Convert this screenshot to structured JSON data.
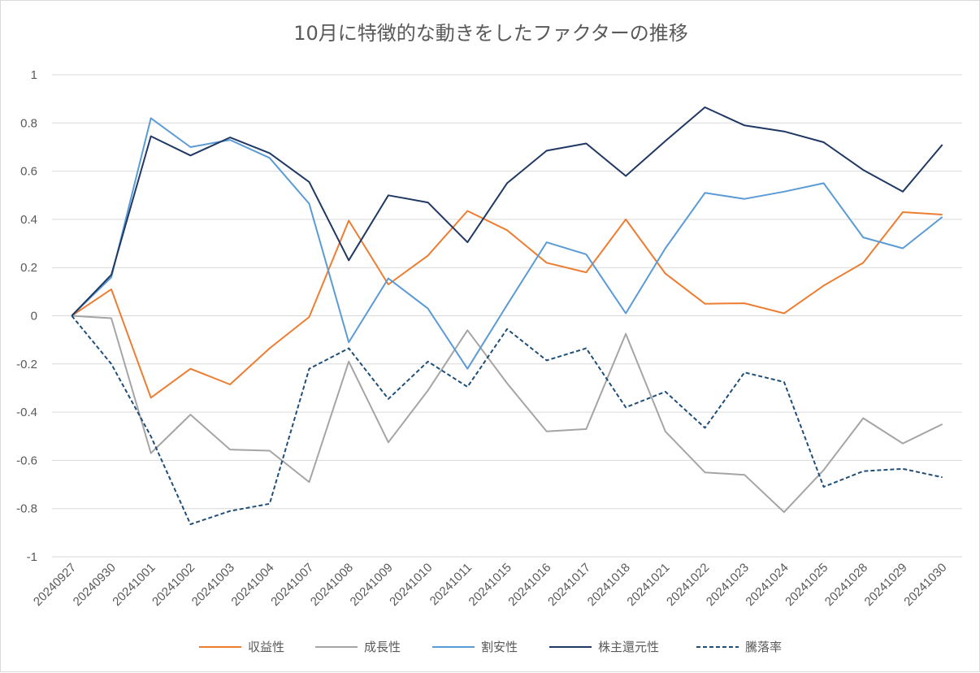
{
  "chart_data": {
    "type": "line",
    "title": "10月に特徴的な動きをしたファクターの推移",
    "xlabel": "",
    "ylabel": "",
    "ylim": [
      -1,
      1
    ],
    "yticks": [
      "1",
      "0.8",
      "0.6",
      "0.4",
      "0.2",
      "0",
      "-0.2",
      "-0.4",
      "-0.6",
      "-0.8",
      "-1"
    ],
    "grid": true,
    "legend_position": "bottom",
    "categories": [
      "20240927",
      "20240930",
      "20241001",
      "20241002",
      "20241003",
      "20241004",
      "20241007",
      "20241008",
      "20241009",
      "20241010",
      "20241011",
      "20241015",
      "20241016",
      "20241017",
      "20241018",
      "20241021",
      "20241022",
      "20241023",
      "20241024",
      "20241025",
      "20241028",
      "20241029",
      "20241030"
    ],
    "series": [
      {
        "name": "収益性",
        "color": "#ED7D31",
        "dash": "solid",
        "values": [
          0,
          0.11,
          -0.34,
          -0.22,
          -0.285,
          -0.135,
          -0.005,
          0.395,
          0.13,
          0.25,
          0.435,
          0.355,
          0.22,
          0.18,
          0.4,
          0.175,
          0.05,
          0.052,
          0.01,
          0.125,
          0.22,
          0.43,
          0.42
        ]
      },
      {
        "name": "成長性",
        "color": "#A5A5A5",
        "dash": "solid",
        "values": [
          0,
          -0.01,
          -0.57,
          -0.41,
          -0.555,
          -0.56,
          -0.69,
          -0.19,
          -0.525,
          -0.31,
          -0.06,
          -0.28,
          -0.48,
          -0.47,
          -0.075,
          -0.48,
          -0.65,
          -0.66,
          -0.815,
          -0.64,
          -0.425,
          -0.53,
          -0.45
        ]
      },
      {
        "name": "割安性",
        "color": "#5B9BD5",
        "dash": "solid",
        "values": [
          0,
          0.16,
          0.82,
          0.7,
          0.73,
          0.655,
          0.465,
          -0.11,
          0.155,
          0.03,
          -0.22,
          0.045,
          0.305,
          0.255,
          0.01,
          0.28,
          0.51,
          0.485,
          0.515,
          0.55,
          0.325,
          0.28,
          0.41
        ]
      },
      {
        "name": "株主還元性",
        "color": "#1F3864",
        "dash": "solid",
        "values": [
          0,
          0.17,
          0.745,
          0.665,
          0.74,
          0.675,
          0.555,
          0.23,
          0.5,
          0.47,
          0.305,
          0.55,
          0.685,
          0.715,
          0.58,
          0.725,
          0.865,
          0.79,
          0.765,
          0.72,
          0.605,
          0.515,
          0.71
        ]
      },
      {
        "name": "騰落率",
        "color": "#1F4E79",
        "dash": "dashed",
        "values": [
          0,
          -0.2,
          -0.5,
          -0.865,
          -0.81,
          -0.78,
          -0.22,
          -0.135,
          -0.345,
          -0.19,
          -0.295,
          -0.055,
          -0.185,
          -0.135,
          -0.38,
          -0.315,
          -0.465,
          -0.235,
          -0.275,
          -0.71,
          -0.645,
          -0.635,
          -0.67
        ]
      }
    ]
  }
}
